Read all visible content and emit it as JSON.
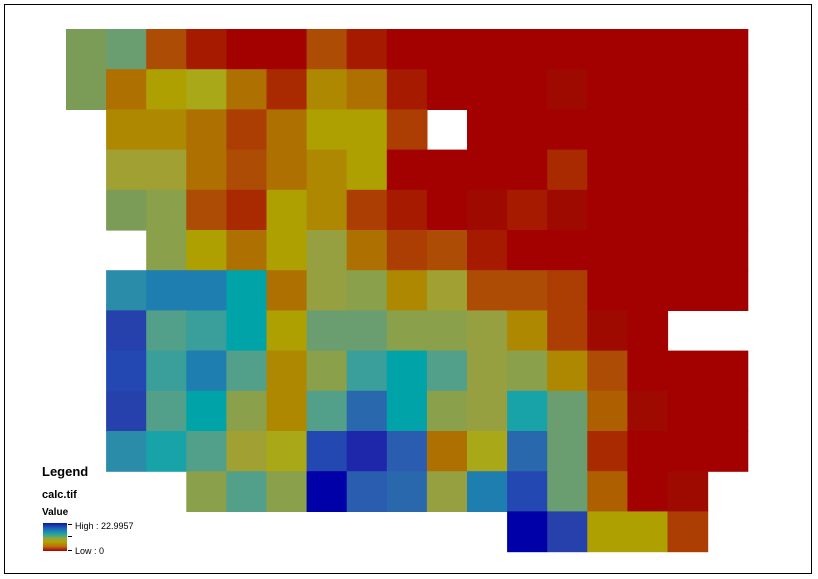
{
  "legend": {
    "title": "Legend",
    "layer": "calc.tif",
    "field": "Value",
    "high_label": "High : 22.9957",
    "low_label": "Low : 0",
    "high_value": 22.9957,
    "low_value": 0
  },
  "raster": {
    "rows": 13,
    "cols": 17,
    "palette": {
      "R": "#a30000",
      "r": "#9e0a00",
      "k": "#a61a00",
      "m": "#aa2a00",
      "b": "#ac3e04",
      "n": "#ad4c04",
      "o": "#ae6000",
      "w": "#ae7000",
      "g": "#ad8800",
      "y": "#aea000",
      "Y": "#a8a818",
      "l": "#a0a033",
      "v": "#96a040",
      "q": "#8aa04a",
      "e": "#7a9c56",
      "s": "#6a9e70",
      "t": "#52a08a",
      "a": "#3a9e9a",
      "c": "#18a3a8",
      "C": "#00a3a8",
      "d": "#2a8ca8",
      "h": "#1f7eb0",
      "p": "#2a68ae",
      "u": "#2a5cb0",
      "x": "#2448b2",
      "z": "#2640ac",
      "i": "#1e26aa",
      "D": "#0000a8"
    },
    "grid": [
      "esnkRRnkRRRRRRRRR",
      "ewyYwmgwkRRRrRRRR",
      "-ggwbwyyb-RRRRRRR",
      "-llwnwgyRRRRmRRRR",
      "-eqnmygbkRrkrRRRR",
      "--qywyvwbnkRRRRRR",
      "-dhhCwvqglnnbRRRR",
      "-ztaCyssqqvgbrR--",
      "-xahtgqaCtvqgnRRR",
      "-ztCqgtpCqvcsorRR",
      "-dctlYxiuwYpsmRRR",
      "---qtqDupvhxsoRr-",
      "-----------Dzyyb-"
    ]
  }
}
